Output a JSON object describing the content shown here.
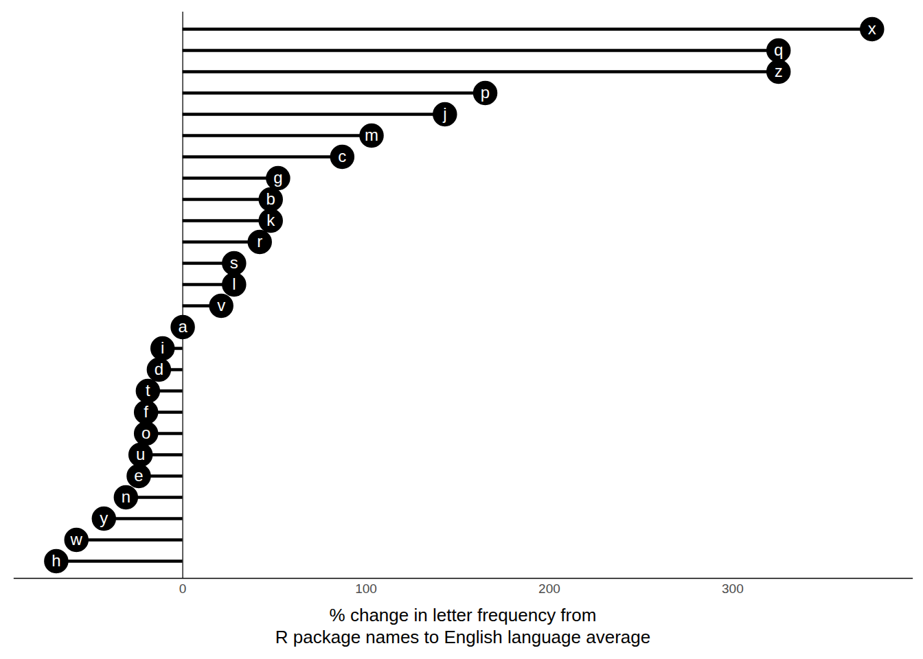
{
  "chart_data": {
    "type": "lollipop",
    "orientation": "horizontal",
    "x_label": "% change in letter frequency from\nR package names to English language average",
    "categories": [
      "x",
      "q",
      "z",
      "p",
      "j",
      "m",
      "c",
      "g",
      "b",
      "k",
      "r",
      "s",
      "l",
      "v",
      "a",
      "i",
      "d",
      "t",
      "f",
      "o",
      "u",
      "e",
      "n",
      "y",
      "w",
      "h"
    ],
    "values": [
      376,
      325,
      325,
      165,
      143,
      103,
      87,
      52,
      48,
      48,
      42,
      28,
      28,
      21,
      0,
      -11,
      -13,
      -19,
      -20,
      -20,
      -23,
      -24,
      -31,
      -43,
      -58,
      -69
    ],
    "color": "#000000",
    "marker": "circle",
    "xlim": [
      -92,
      398
    ],
    "xticks": [
      0,
      100,
      200,
      300
    ],
    "grid": false,
    "tick_labels": "x"
  }
}
